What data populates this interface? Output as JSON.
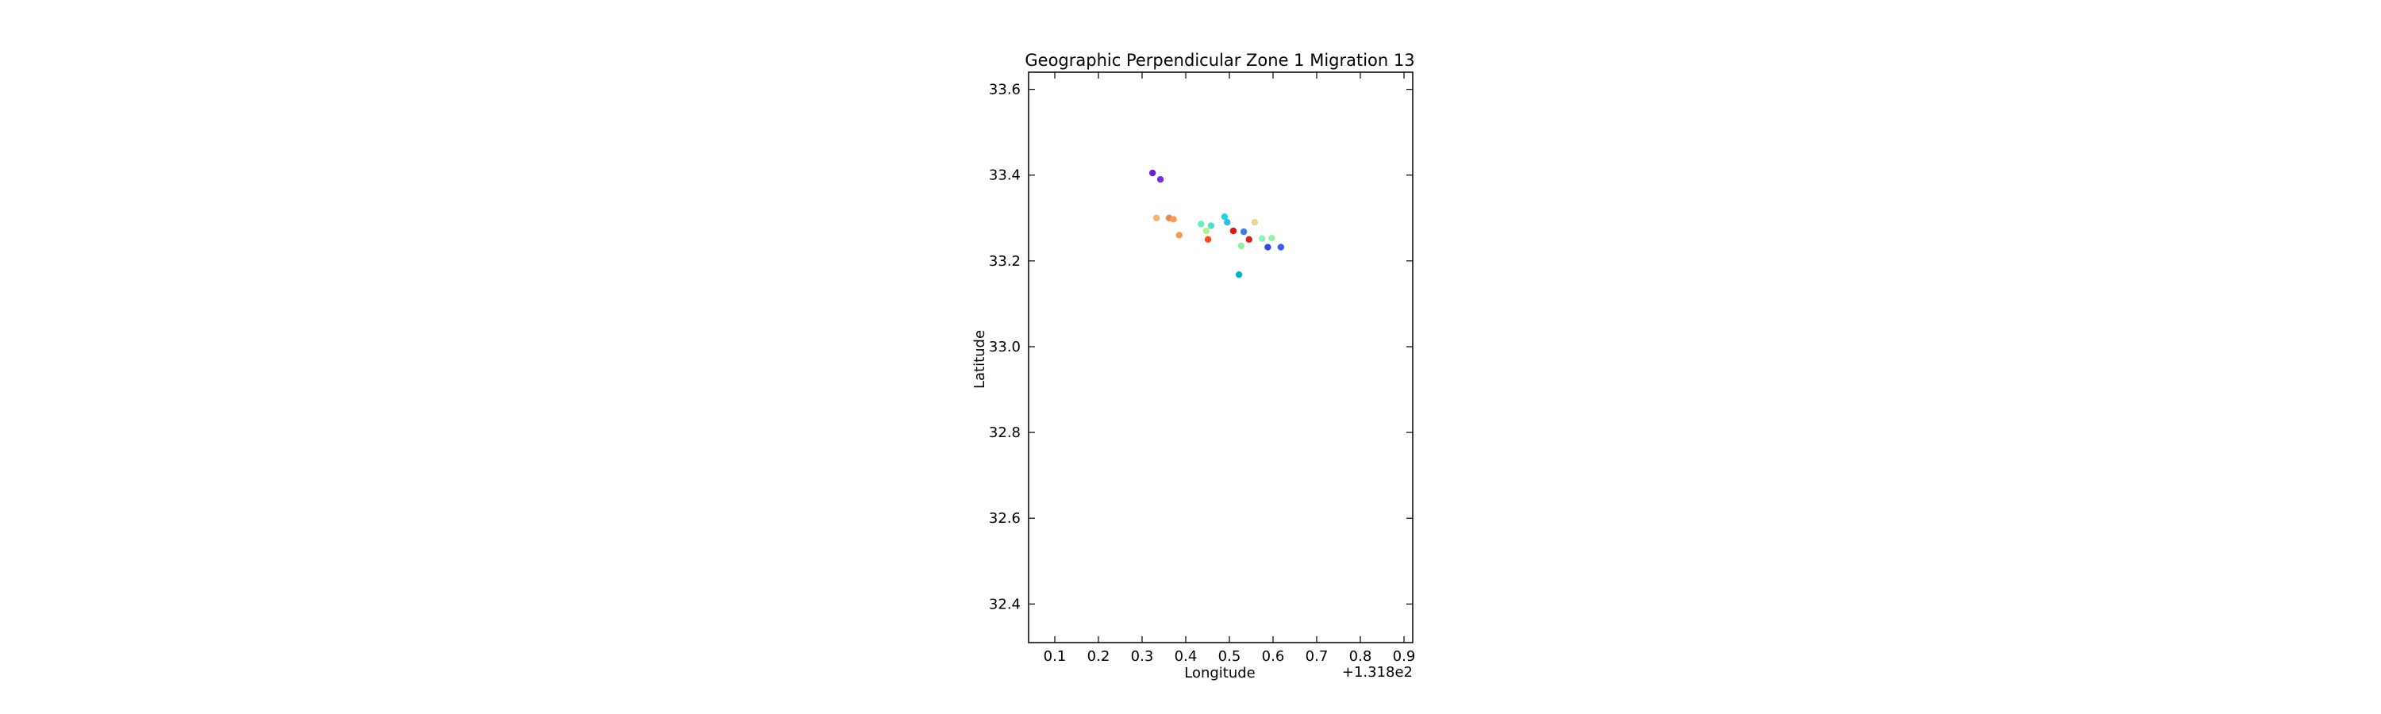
{
  "chart_data": {
    "type": "scatter",
    "title": "Geographic Perpendicular Zone 1 Migration 13",
    "xlabel": "Longitude",
    "ylabel": "Latitude",
    "x_offset_label": "+1.318e2",
    "xlim": [
      0.04,
      0.92
    ],
    "ylim": [
      32.31,
      33.64
    ],
    "x_ticks": [
      0.1,
      0.2,
      0.3,
      0.4,
      0.5,
      0.6,
      0.7,
      0.8,
      0.9
    ],
    "y_ticks": [
      32.4,
      32.6,
      32.8,
      33.0,
      33.2,
      33.4,
      33.6
    ],
    "x_tick_labels": [
      "0.1",
      "0.2",
      "0.3",
      "0.4",
      "0.5",
      "0.6",
      "0.7",
      "0.8",
      "0.9"
    ],
    "y_tick_labels": [
      "32.4",
      "32.6",
      "32.8",
      "33.0",
      "33.2",
      "33.4",
      "33.6"
    ],
    "grid": false,
    "points": [
      {
        "x": 0.324,
        "y": 33.405,
        "color": "#6a1fd6"
      },
      {
        "x": 0.342,
        "y": 33.39,
        "color": "#7b2be0"
      },
      {
        "x": 0.333,
        "y": 33.3,
        "color": "#f6b26b"
      },
      {
        "x": 0.362,
        "y": 33.3,
        "color": "#f4824a"
      },
      {
        "x": 0.372,
        "y": 33.297,
        "color": "#f99a55"
      },
      {
        "x": 0.385,
        "y": 33.26,
        "color": "#f79a50"
      },
      {
        "x": 0.435,
        "y": 33.286,
        "color": "#66f0c0"
      },
      {
        "x": 0.447,
        "y": 33.27,
        "color": "#b5f08a"
      },
      {
        "x": 0.451,
        "y": 33.25,
        "color": "#ff4a1e"
      },
      {
        "x": 0.458,
        "y": 33.282,
        "color": "#4de0d2"
      },
      {
        "x": 0.489,
        "y": 33.303,
        "color": "#1ad6e6"
      },
      {
        "x": 0.495,
        "y": 33.29,
        "color": "#35b9e6"
      },
      {
        "x": 0.509,
        "y": 33.27,
        "color": "#e81010"
      },
      {
        "x": 0.522,
        "y": 33.168,
        "color": "#00b5cf"
      },
      {
        "x": 0.533,
        "y": 33.268,
        "color": "#3a7ff0"
      },
      {
        "x": 0.527,
        "y": 33.235,
        "color": "#8ef0a0"
      },
      {
        "x": 0.545,
        "y": 33.25,
        "color": "#d92020"
      },
      {
        "x": 0.558,
        "y": 33.29,
        "color": "#e6d68f"
      },
      {
        "x": 0.575,
        "y": 33.252,
        "color": "#8ff0b8"
      },
      {
        "x": 0.597,
        "y": 33.253,
        "color": "#9af0aa"
      },
      {
        "x": 0.588,
        "y": 33.232,
        "color": "#3248e8"
      },
      {
        "x": 0.618,
        "y": 33.232,
        "color": "#3a5cf0"
      }
    ]
  }
}
